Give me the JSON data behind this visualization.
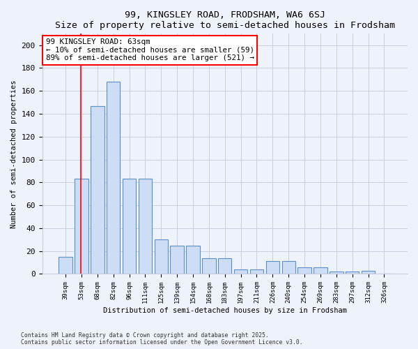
{
  "title1": "99, KINGSLEY ROAD, FRODSHAM, WA6 6SJ",
  "title2": "Size of property relative to semi-detached houses in Frodsham",
  "xlabel": "Distribution of semi-detached houses by size in Frodsham",
  "ylabel": "Number of semi-detached properties",
  "bar_labels": [
    "39sqm",
    "53sqm",
    "68sqm",
    "82sqm",
    "96sqm",
    "111sqm",
    "125sqm",
    "139sqm",
    "154sqm",
    "168sqm",
    "183sqm",
    "197sqm",
    "211sqm",
    "226sqm",
    "240sqm",
    "254sqm",
    "269sqm",
    "283sqm",
    "297sqm",
    "312sqm",
    "326sqm"
  ],
  "bar_values": [
    15,
    83,
    147,
    168,
    83,
    83,
    30,
    25,
    25,
    14,
    14,
    4,
    4,
    11,
    11,
    6,
    6,
    2,
    2,
    3,
    0
  ],
  "bar_color": "#ccddf5",
  "bar_edge_color": "#5b8fc9",
  "red_line_x": 0.98,
  "annotation_text": "99 KINGSLEY ROAD: 63sqm\n← 10% of semi-detached houses are smaller (59)\n89% of semi-detached houses are larger (521) →",
  "annotation_box_color": "white",
  "annotation_box_edge": "red",
  "ylim": [
    0,
    210
  ],
  "yticks": [
    0,
    20,
    40,
    60,
    80,
    100,
    120,
    140,
    160,
    180,
    200
  ],
  "footer1": "Contains HM Land Registry data © Crown copyright and database right 2025.",
  "footer2": "Contains public sector information licensed under the Open Government Licence v3.0.",
  "bg_color": "#eef2fb",
  "grid_color": "#c8d0e0",
  "title_fontsize": 9.5,
  "annot_fontsize": 7.8
}
